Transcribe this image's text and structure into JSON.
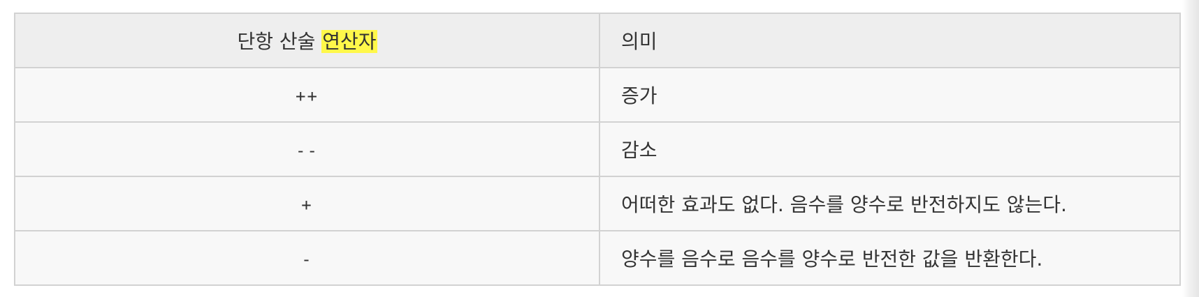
{
  "table": {
    "header": {
      "operator_prefix": "단항 산술 ",
      "operator_highlight": "연산자",
      "meaning": "의미"
    },
    "rows": [
      {
        "operator": "++",
        "meaning": "증가"
      },
      {
        "operator": "--",
        "meaning": "감소"
      },
      {
        "operator": "+",
        "meaning": "어떠한 효과도 없다. 음수를 양수로 반전하지도 않는다."
      },
      {
        "operator": "-",
        "meaning": "양수를 음수로 음수를 양수로 반전한 값을 반환한다."
      }
    ]
  },
  "colors": {
    "highlight": "#fff84a",
    "header_bg": "#eeeeee",
    "row_bg": "#f8f8f8",
    "border": "#d2d2d2"
  }
}
